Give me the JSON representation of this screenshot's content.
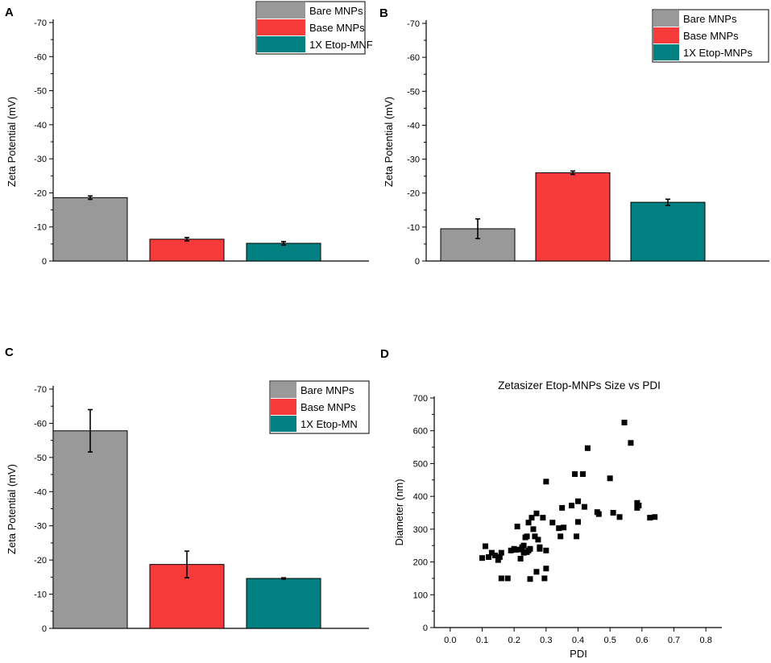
{
  "colors": {
    "bare": "#999999",
    "base": "#f73a3a",
    "etop": "#008080"
  },
  "chart_data": [
    {
      "panel": "A",
      "type": "bar",
      "ylabel": "Zeta Potential (mV)",
      "ylim": [
        0,
        -70
      ],
      "yticks": [
        "-70",
        "-60",
        "-50",
        "-40",
        "-30",
        "-20",
        "-10",
        "0"
      ],
      "legend": [
        "Bare MNPs",
        "Base MNPs",
        "1X Etop-MNF"
      ],
      "categories": [
        "Bare MNPs",
        "Base MNPs",
        "1X Etop-MNPs"
      ],
      "values": [
        -18.6,
        -6.4,
        -5.2
      ],
      "errors": [
        0.5,
        0.5,
        0.5
      ]
    },
    {
      "panel": "B",
      "type": "bar",
      "ylabel": "Zeta Potential (mV)",
      "ylim": [
        0,
        -70
      ],
      "yticks": [
        "-70",
        "-60",
        "-50",
        "-40",
        "-30",
        "-20",
        "-10",
        "0"
      ],
      "legend": [
        "Bare MNPs",
        "Base MNPs",
        "1X Etop-MNPs"
      ],
      "categories": [
        "Bare MNPs",
        "Base MNPs",
        "1X Etop-MNPs"
      ],
      "values": [
        -9.5,
        -26.0,
        -17.3
      ],
      "errors": [
        2.9,
        0.5,
        0.9
      ]
    },
    {
      "panel": "C",
      "type": "bar",
      "ylabel": "Zeta Potential (mV)",
      "ylim": [
        0,
        -70
      ],
      "yticks": [
        "-70",
        "-60",
        "-50",
        "-40",
        "-30",
        "-20",
        "-10",
        "0"
      ],
      "legend": [
        "Bare MNPs",
        "Base MNPs",
        "1X Etop-MN"
      ],
      "categories": [
        "Bare MNPs",
        "Base MNPs",
        "1X Etop-MNPs"
      ],
      "values": [
        -57.8,
        -18.7,
        -14.6
      ],
      "errors": [
        6.2,
        3.9,
        0.2
      ]
    },
    {
      "panel": "D",
      "type": "scatter",
      "title": "Zetasizer Etop-MNPs Size vs PDI",
      "xlabel": "PDI",
      "ylabel": "Diameter (nm)",
      "xlim": [
        -0.05,
        0.85
      ],
      "ylim": [
        0,
        700
      ],
      "xticks": [
        "0.0",
        "0.1",
        "0.2",
        "0.3",
        "0.4",
        "0.5",
        "0.6",
        "0.7",
        "0.8"
      ],
      "yticks": [
        "0",
        "100",
        "200",
        "300",
        "400",
        "500",
        "600",
        "700"
      ],
      "points": [
        [
          0.1,
          212
        ],
        [
          0.11,
          248
        ],
        [
          0.12,
          215
        ],
        [
          0.13,
          228
        ],
        [
          0.14,
          220
        ],
        [
          0.15,
          206
        ],
        [
          0.155,
          215
        ],
        [
          0.16,
          228
        ],
        [
          0.16,
          150
        ],
        [
          0.18,
          150
        ],
        [
          0.19,
          235
        ],
        [
          0.2,
          240
        ],
        [
          0.205,
          237
        ],
        [
          0.21,
          308
        ],
        [
          0.22,
          238
        ],
        [
          0.22,
          210
        ],
        [
          0.225,
          245
        ],
        [
          0.23,
          228
        ],
        [
          0.23,
          250
        ],
        [
          0.235,
          275
        ],
        [
          0.24,
          230
        ],
        [
          0.24,
          278
        ],
        [
          0.245,
          235
        ],
        [
          0.245,
          320
        ],
        [
          0.25,
          148
        ],
        [
          0.25,
          240
        ],
        [
          0.255,
          335
        ],
        [
          0.26,
          300
        ],
        [
          0.265,
          278
        ],
        [
          0.27,
          170
        ],
        [
          0.27,
          348
        ],
        [
          0.275,
          268
        ],
        [
          0.28,
          245
        ],
        [
          0.28,
          240
        ],
        [
          0.29,
          335
        ],
        [
          0.295,
          150
        ],
        [
          0.3,
          180
        ],
        [
          0.3,
          445
        ],
        [
          0.3,
          235
        ],
        [
          0.32,
          320
        ],
        [
          0.34,
          303
        ],
        [
          0.345,
          278
        ],
        [
          0.35,
          365
        ],
        [
          0.355,
          305
        ],
        [
          0.38,
          372
        ],
        [
          0.39,
          468
        ],
        [
          0.395,
          278
        ],
        [
          0.4,
          322
        ],
        [
          0.4,
          385
        ],
        [
          0.415,
          468
        ],
        [
          0.42,
          368
        ],
        [
          0.43,
          547
        ],
        [
          0.46,
          352
        ],
        [
          0.465,
          346
        ],
        [
          0.5,
          455
        ],
        [
          0.51,
          350
        ],
        [
          0.53,
          337
        ],
        [
          0.545,
          625
        ],
        [
          0.565,
          563
        ],
        [
          0.585,
          365
        ],
        [
          0.585,
          380
        ],
        [
          0.59,
          372
        ],
        [
          0.625,
          335
        ],
        [
          0.64,
          337
        ]
      ]
    }
  ]
}
